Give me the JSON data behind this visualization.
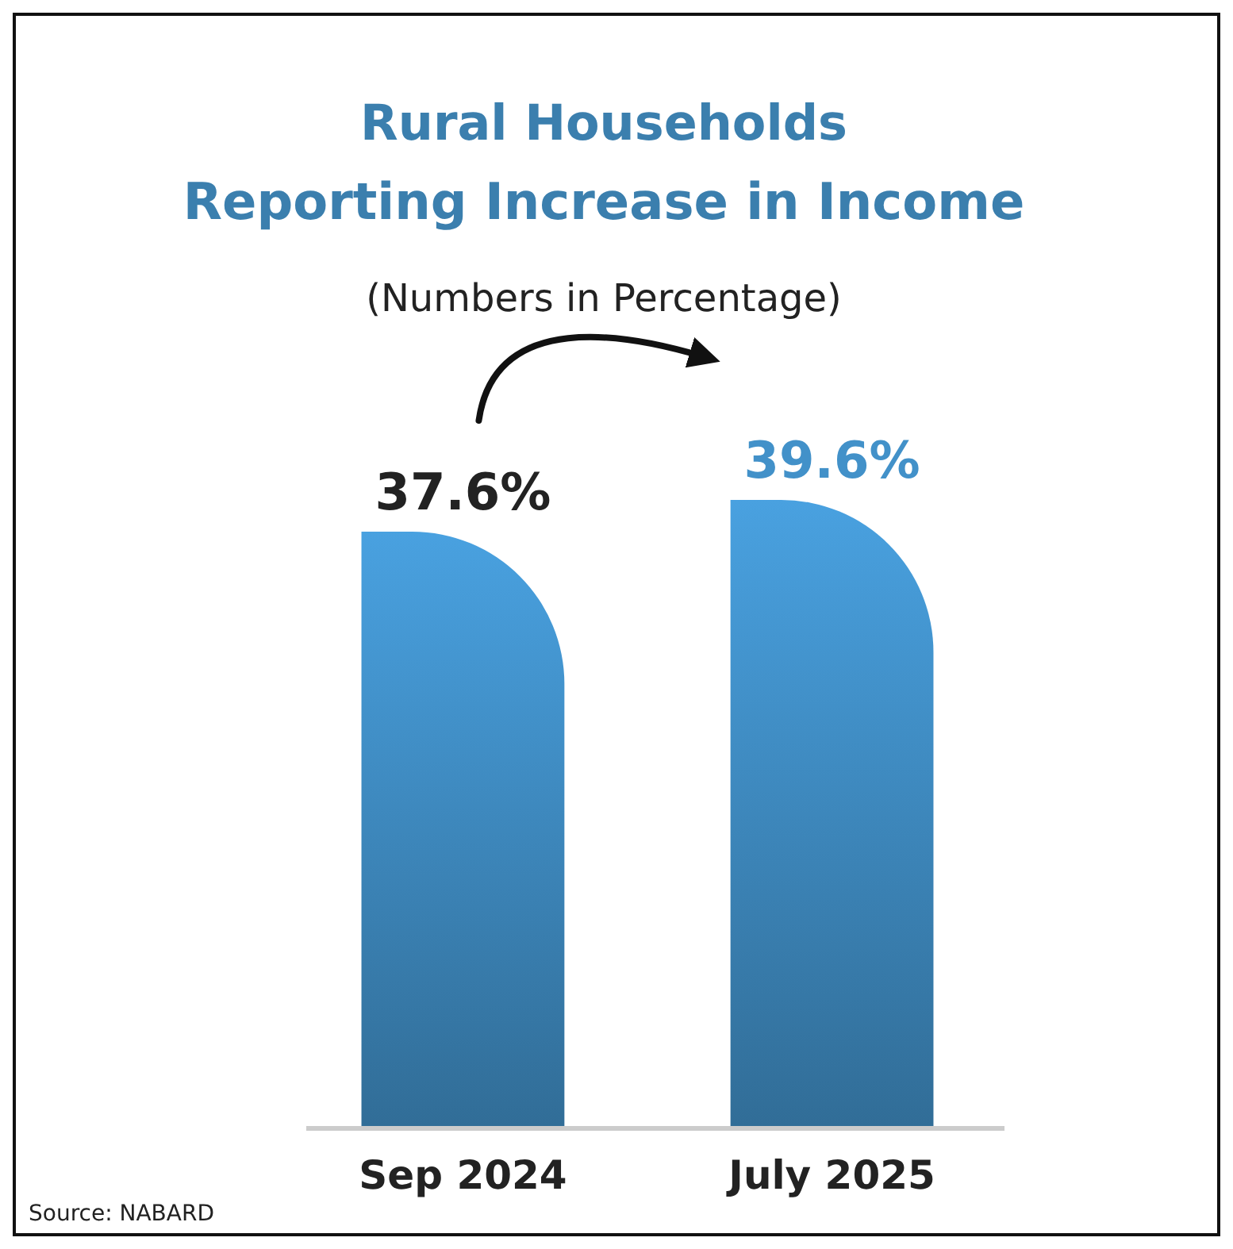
{
  "chart_data": {
    "type": "bar",
    "title": "Rural Households\nReporting Increase in Income",
    "subtitle": "(Numbers in Percentage)",
    "categories": [
      "Sep 2024",
      "July 2025"
    ],
    "values": [
      37.6,
      39.6
    ],
    "color": "#3b82b5",
    "data_labels": true,
    "value_labels": [
      "37.6%",
      "39.6%"
    ],
    "annotations": [
      "Source: NABARD"
    ]
  }
}
